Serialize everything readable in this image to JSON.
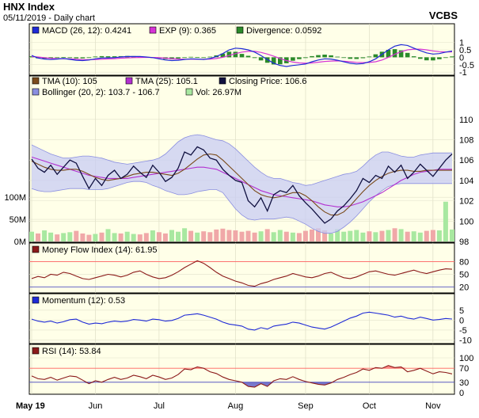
{
  "header": {
    "title": "HNX Index",
    "subtitle": "05/11/2019 - Daily chart",
    "source": "VCBS"
  },
  "colors": {
    "panel_bg": "#ffffe8",
    "border": "#000000",
    "macd": "#1f2ad6",
    "exp": "#d633d6",
    "divergence": "#2a8a2a",
    "tma10": "#7a4a1a",
    "tma25": "#b22fd0",
    "close": "#101040",
    "bollinger_fill": "#c8ccf4",
    "bollinger_line": "#8a8ee0",
    "vol_green": "#a8e8a0",
    "vol_red": "#f0a8a8",
    "mfi": "#8b1a1a",
    "momentum": "#1f2ad6",
    "rsi": "#8b1a1a",
    "overbought": "#ff6060",
    "oversold": "#4040c0"
  },
  "legends": {
    "macd": [
      {
        "label": "MACD (26, 12): 0.4241",
        "color": "#1f2ad6"
      },
      {
        "label": "EXP (9): 0.365",
        "color": "#d633d6"
      },
      {
        "label": "Divergence: 0.0592",
        "color": "#2a8a2a"
      }
    ],
    "price": [
      {
        "label": "TMA (10): 105",
        "color": "#7a4a1a"
      },
      {
        "label": "TMA (25): 105.1",
        "color": "#b22fd0"
      },
      {
        "label": "Closing Price: 106.6",
        "color": "#101040"
      },
      {
        "label": "Bollinger (20, 2): 103.7 - 106.7",
        "color": "#8a8ee0"
      },
      {
        "label": "Vol: 26.97M",
        "color": "#a8e8a0"
      }
    ],
    "mfi": [
      {
        "label": "Money Flow Index (14): 61.95",
        "color": "#8b1a1a"
      }
    ],
    "momentum": [
      {
        "label": "Momentum (12): 0.53",
        "color": "#1f2ad6"
      }
    ],
    "rsi": [
      {
        "label": "RSI (14): 53.84",
        "color": "#8b1a1a"
      }
    ]
  },
  "chart_data": [
    {
      "type": "line",
      "panel": "macd",
      "yticks": [
        "1",
        "0.5",
        "0",
        "-0.5",
        "-1"
      ],
      "ylim": [
        -1.1,
        1.3
      ],
      "series": [
        {
          "name": "MACD",
          "values": [
            0.12,
            -0.05,
            -0.12,
            -0.15,
            -0.12,
            -0.08,
            -0.14,
            -0.2,
            -0.22,
            -0.18,
            -0.1,
            -0.05,
            -0.04,
            -0.02,
            0.02,
            0.05,
            0.06,
            0.05,
            0.02,
            -0.02,
            -0.1,
            -0.18,
            -0.22,
            -0.2,
            -0.15,
            -0.1,
            -0.12,
            -0.15,
            -0.08,
            0.05,
            0.25,
            0.5,
            0.62,
            0.58,
            0.5,
            0.35,
            0.12,
            -0.15,
            -0.4,
            -0.55,
            -0.62,
            -0.55,
            -0.5,
            -0.45,
            -0.3,
            -0.18,
            -0.1,
            -0.12,
            -0.2,
            -0.3,
            -0.4,
            -0.45,
            -0.42,
            -0.3,
            -0.1,
            0.2,
            0.5,
            0.75,
            0.85,
            0.8,
            0.62,
            0.45,
            0.3,
            0.22,
            0.25,
            0.35,
            0.42
          ]
        },
        {
          "name": "EXP",
          "values": [
            0.05,
            0.02,
            -0.03,
            -0.07,
            -0.09,
            -0.1,
            -0.11,
            -0.13,
            -0.15,
            -0.16,
            -0.15,
            -0.13,
            -0.11,
            -0.09,
            -0.06,
            -0.04,
            -0.02,
            -0.01,
            0.0,
            -0.01,
            -0.03,
            -0.06,
            -0.09,
            -0.12,
            -0.13,
            -0.13,
            -0.13,
            -0.13,
            -0.12,
            -0.08,
            0.0,
            0.12,
            0.25,
            0.35,
            0.4,
            0.4,
            0.33,
            0.22,
            0.08,
            -0.08,
            -0.22,
            -0.32,
            -0.38,
            -0.4,
            -0.38,
            -0.33,
            -0.28,
            -0.25,
            -0.24,
            -0.26,
            -0.3,
            -0.34,
            -0.36,
            -0.35,
            -0.3,
            -0.18,
            0.0,
            0.2,
            0.38,
            0.5,
            0.55,
            0.55,
            0.5,
            0.43,
            0.38,
            0.36,
            0.365
          ]
        },
        {
          "name": "Divergence",
          "values": [
            0.07,
            -0.07,
            -0.09,
            -0.08,
            -0.03,
            0.02,
            -0.03,
            -0.07,
            -0.07,
            -0.02,
            0.05,
            0.08,
            0.07,
            0.07,
            0.08,
            0.09,
            0.08,
            0.06,
            0.02,
            -0.01,
            -0.07,
            -0.12,
            -0.13,
            -0.08,
            -0.02,
            0.03,
            0.01,
            -0.02,
            0.04,
            0.13,
            0.25,
            0.38,
            0.37,
            0.23,
            0.1,
            -0.05,
            -0.21,
            -0.37,
            -0.48,
            -0.47,
            -0.4,
            -0.23,
            -0.12,
            -0.05,
            0.08,
            0.15,
            0.18,
            0.13,
            0.04,
            -0.04,
            -0.1,
            -0.11,
            -0.06,
            0.05,
            0.2,
            0.38,
            0.5,
            0.55,
            0.47,
            0.3,
            0.07,
            -0.1,
            -0.2,
            -0.21,
            -0.13,
            -0.01,
            0.0592
          ]
        }
      ]
    },
    {
      "type": "line",
      "panel": "price",
      "yticks": [
        "110",
        "108",
        "106",
        "104",
        "102",
        "100",
        "98"
      ],
      "ylim": [
        98,
        111
      ],
      "series": [
        {
          "name": "Closing Price",
          "values": [
            106.1,
            105.2,
            104.8,
            105.5,
            104.6,
            105.3,
            106.0,
            105.7,
            104.4,
            103.2,
            104.2,
            103.5,
            104.5,
            105.0,
            104.2,
            104.6,
            105.4,
            104.8,
            104.3,
            105.5,
            104.8,
            103.9,
            104.3,
            105.2,
            106.8,
            106.5,
            107.3,
            107.0,
            106.2,
            106.0,
            105.1,
            104.5,
            104.0,
            103.8,
            102.0,
            101.4,
            102.3,
            101.0,
            102.6,
            103.0,
            102.8,
            103.5,
            102.5,
            101.8,
            101.2,
            100.5,
            99.8,
            100.2,
            101.0,
            101.5,
            102.2,
            103.0,
            104.2,
            103.8,
            104.5,
            104.2,
            105.4,
            104.8,
            105.5,
            104.2,
            104.8,
            105.6,
            105.0,
            104.4,
            105.2,
            106.0,
            106.6
          ]
        },
        {
          "name": "TMA (10)",
          "values": [
            105.9,
            105.6,
            105.3,
            105.1,
            105.0,
            105.0,
            105.1,
            105.1,
            104.9,
            104.6,
            104.3,
            104.1,
            104.0,
            104.1,
            104.2,
            104.4,
            104.6,
            104.7,
            104.8,
            104.8,
            104.7,
            104.6,
            104.5,
            104.7,
            105.1,
            105.6,
            106.1,
            106.5,
            106.6,
            106.5,
            106.0,
            105.4,
            104.8,
            104.2,
            103.6,
            103.0,
            102.6,
            102.4,
            102.3,
            102.4,
            102.6,
            102.8,
            102.8,
            102.5,
            102.0,
            101.4,
            100.9,
            100.6,
            100.6,
            100.9,
            101.5,
            102.2,
            102.9,
            103.5,
            104.0,
            104.4,
            104.7,
            104.9,
            105.0,
            105.0,
            104.9,
            104.9,
            105.0,
            105.0,
            105.0,
            105.0,
            105.0
          ]
        },
        {
          "name": "TMA (25)",
          "values": [
            106.3,
            106.1,
            105.9,
            105.7,
            105.5,
            105.3,
            105.1,
            104.9,
            104.7,
            104.5,
            104.4,
            104.3,
            104.2,
            104.2,
            104.2,
            104.2,
            104.3,
            104.4,
            104.5,
            104.6,
            104.7,
            104.8,
            104.9,
            105.0,
            105.1,
            105.2,
            105.3,
            105.3,
            105.2,
            105.1,
            104.8,
            104.5,
            104.2,
            103.9,
            103.6,
            103.3,
            103.0,
            102.8,
            102.6,
            102.5,
            102.4,
            102.3,
            102.2,
            102.1,
            102.0,
            101.8,
            101.6,
            101.5,
            101.4,
            101.4,
            101.5,
            101.7,
            101.9,
            102.2,
            102.5,
            102.8,
            103.2,
            103.6,
            104.0,
            104.3,
            104.6,
            104.8,
            104.9,
            105.0,
            105.1,
            105.1,
            105.1
          ]
        },
        {
          "name": "Bollinger Upper",
          "values": [
            107.5,
            107.2,
            106.9,
            106.6,
            106.4,
            106.2,
            106.2,
            106.3,
            106.4,
            106.4,
            106.3,
            106.2,
            106.0,
            105.8,
            105.7,
            105.6,
            105.7,
            105.8,
            105.9,
            106.0,
            106.2,
            106.6,
            107.2,
            107.8,
            108.2,
            108.4,
            108.5,
            108.4,
            108.2,
            108.0,
            107.9,
            107.6,
            107.1,
            106.5,
            105.9,
            105.3,
            104.8,
            104.4,
            104.2,
            104.2,
            104.0,
            103.8,
            103.7,
            103.5,
            103.6,
            103.8,
            104.0,
            104.2,
            104.4,
            104.6,
            104.7,
            104.9,
            105.4,
            106.0,
            106.5,
            106.8,
            106.8,
            106.6,
            106.4,
            106.3,
            106.3,
            106.5,
            106.6,
            106.7,
            106.7,
            106.7,
            106.7
          ]
        },
        {
          "name": "Bollinger Lower",
          "values": [
            103.2,
            103.0,
            102.9,
            102.9,
            103.0,
            103.1,
            103.2,
            103.2,
            103.2,
            103.1,
            103.1,
            103.1,
            103.2,
            103.4,
            103.6,
            103.8,
            103.9,
            103.9,
            103.8,
            103.5,
            103.3,
            103.0,
            102.8,
            102.6,
            102.6,
            102.7,
            102.9,
            103.0,
            103.1,
            103.1,
            102.8,
            102.0,
            101.2,
            100.6,
            100.2,
            100.1,
            100.2,
            100.2,
            100.2,
            100.3,
            100.4,
            100.3,
            100.0,
            99.7,
            99.3,
            99.0,
            98.8,
            98.8,
            99.0,
            99.4,
            99.9,
            100.5,
            101.2,
            101.9,
            102.5,
            103.0,
            103.4,
            103.6,
            103.7,
            103.7,
            103.7,
            103.7,
            103.7,
            103.7,
            103.7,
            103.7,
            103.7
          ]
        }
      ]
    },
    {
      "type": "bar",
      "panel": "volume",
      "yticks": [
        "100M",
        "50M",
        "0M"
      ],
      "ylim": [
        0,
        120
      ],
      "values": [
        22,
        18,
        25,
        20,
        16,
        19,
        21,
        24,
        18,
        15,
        17,
        20,
        28,
        19,
        18,
        22,
        17,
        16,
        19,
        25,
        21,
        18,
        26,
        22,
        30,
        24,
        20,
        23,
        21,
        27,
        29,
        26,
        25,
        22,
        24,
        20,
        23,
        28,
        21,
        26,
        22,
        20,
        19,
        24,
        27,
        30,
        25,
        18,
        28,
        22,
        24,
        26,
        20,
        23,
        21,
        24,
        26,
        30,
        28,
        22,
        23,
        20,
        24,
        26,
        25,
        90,
        27
      ],
      "up": [
        1,
        0,
        1,
        1,
        0,
        1,
        1,
        0,
        0,
        0,
        1,
        0,
        1,
        1,
        0,
        1,
        1,
        0,
        0,
        1,
        0,
        0,
        1,
        1,
        1,
        0,
        1,
        0,
        0,
        0,
        0,
        0,
        0,
        0,
        0,
        0,
        1,
        0,
        1,
        1,
        0,
        1,
        0,
        0,
        0,
        0,
        0,
        1,
        1,
        1,
        1,
        1,
        1,
        0,
        1,
        0,
        1,
        0,
        1,
        0,
        1,
        1,
        0,
        0,
        1,
        1,
        1
      ]
    },
    {
      "type": "line",
      "panel": "mfi",
      "yticks": [
        "80",
        "50",
        "20"
      ],
      "ylim": [
        10,
        92
      ],
      "overbought": 80,
      "oversold": 20,
      "values": [
        40,
        45,
        42,
        50,
        48,
        55,
        52,
        46,
        40,
        38,
        42,
        46,
        50,
        48,
        44,
        48,
        55,
        58,
        50,
        44,
        40,
        42,
        48,
        56,
        66,
        74,
        82,
        76,
        66,
        55,
        46,
        40,
        34,
        30,
        24,
        22,
        28,
        32,
        38,
        42,
        46,
        52,
        48,
        44,
        42,
        46,
        52,
        55,
        48,
        42,
        40,
        44,
        50,
        56,
        58,
        54,
        50,
        48,
        52,
        56,
        60,
        55,
        52,
        56,
        60,
        63,
        62
      ]
    },
    {
      "type": "line",
      "panel": "momentum",
      "yticks": [
        "5",
        "0",
        "-5",
        "-10"
      ],
      "ylim": [
        -11,
        6.5
      ],
      "values": [
        0.5,
        -0.5,
        -1.0,
        -0.5,
        -1.5,
        -0.8,
        0.2,
        0.5,
        -1.0,
        -2.0,
        -1.5,
        -1.8,
        -1.0,
        -0.5,
        -0.8,
        -0.5,
        0.3,
        0.0,
        -0.5,
        0.5,
        0.2,
        -0.5,
        -0.2,
        0.8,
        2.5,
        2.8,
        3.2,
        2.5,
        1.5,
        0.5,
        -1.0,
        -2.0,
        -2.5,
        -3.0,
        -4.5,
        -5.0,
        -3.8,
        -4.5,
        -3.0,
        -2.5,
        -2.0,
        -1.0,
        -1.5,
        -2.5,
        -3.5,
        -4.0,
        -4.5,
        -3.5,
        -2.0,
        -0.5,
        1.0,
        2.0,
        3.5,
        4.0,
        3.5,
        3.0,
        2.5,
        1.5,
        2.0,
        1.0,
        0.5,
        1.5,
        0.8,
        0.0,
        0.3,
        0.8,
        0.53
      ]
    },
    {
      "type": "line",
      "panel": "rsi",
      "yticks": [
        "100",
        "70",
        "30",
        "0"
      ],
      "ylim": [
        0,
        100
      ],
      "overbought": 70,
      "oversold": 30,
      "values": [
        48,
        40,
        38,
        44,
        36,
        42,
        48,
        46,
        36,
        26,
        34,
        30,
        38,
        44,
        38,
        42,
        50,
        46,
        40,
        50,
        45,
        38,
        42,
        52,
        68,
        66,
        74,
        70,
        60,
        55,
        45,
        38,
        34,
        30,
        18,
        16,
        26,
        18,
        34,
        40,
        38,
        46,
        38,
        32,
        28,
        24,
        22,
        28,
        38,
        44,
        52,
        58,
        68,
        64,
        72,
        70,
        78,
        72,
        74,
        60,
        64,
        70,
        62,
        54,
        60,
        58,
        53.84
      ]
    }
  ],
  "x_axis": {
    "labels": [
      "May 19",
      "Jun",
      "Jul",
      "Aug",
      "Sep",
      "Oct",
      "Nov"
    ],
    "label_index": [
      0,
      10,
      20,
      32,
      43,
      53,
      63
    ]
  }
}
